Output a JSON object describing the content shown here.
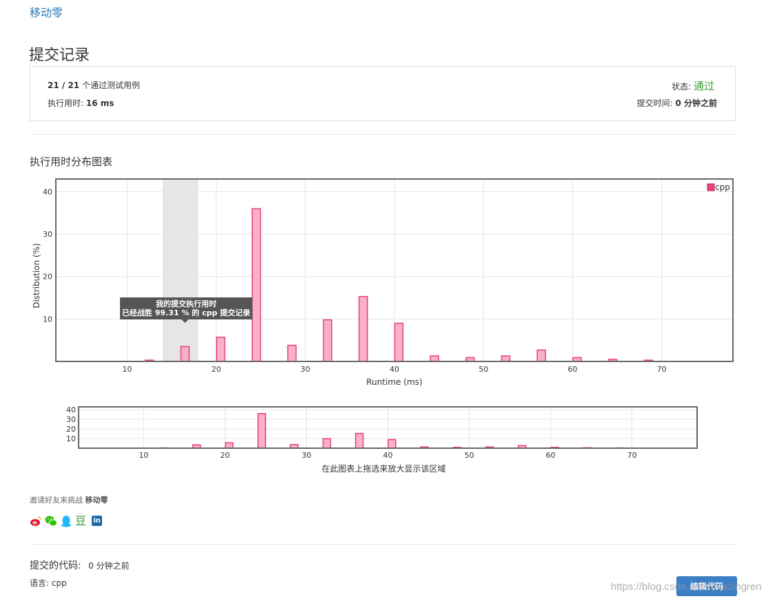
{
  "problem": {
    "link": "移动零"
  },
  "page": {
    "title": "提交记录"
  },
  "summary": {
    "passed": "21 / 21",
    "passed_suffix": " 个通过测试用例",
    "runtime_label": "执行用时: ",
    "runtime_value": "16 ms",
    "status_label": "状态: ",
    "status_value": "通过",
    "submit_time_label": "提交时间: ",
    "submit_time_value": "0 分钟之前"
  },
  "section": {
    "distribution_title": "执行用时分布图表"
  },
  "colors": {
    "bar_fill": "#f9b0c8",
    "bar_stroke": "#e8407a",
    "status_ok": "#3aa33a",
    "link": "#2a7ab8",
    "button": "#3b7fc4"
  },
  "chart_data": [
    {
      "type": "bar",
      "x": [
        12.5,
        16.5,
        20.5,
        24.5,
        28.5,
        32.5,
        36.5,
        40.5,
        44.5,
        48.5,
        52.5,
        56.5,
        60.5,
        64.5,
        68.5
      ],
      "series": [
        {
          "name": "cpp",
          "values": [
            0.3,
            3.5,
            5.7,
            36,
            3.8,
            9.8,
            15.3,
            9.0,
            1.3,
            0.9,
            1.3,
            2.7,
            0.9,
            0.5,
            0.3
          ]
        }
      ],
      "xlabel": "Runtime (ms)",
      "ylabel": "Distribution (%)",
      "xlim": [
        2,
        78
      ],
      "ylim": [
        0,
        43
      ],
      "xticks": [
        10,
        20,
        30,
        40,
        50,
        60,
        70
      ],
      "yticks": [
        10,
        20,
        30,
        40
      ],
      "grid": true,
      "legend": "top-right",
      "highlight_range": [
        14,
        18
      ],
      "tooltip": {
        "line1": "我的提交执行用时",
        "line2": "已经战胜 99.31 % 的 cpp 提交记录"
      }
    },
    {
      "type": "bar",
      "x": [
        12.5,
        16.5,
        20.5,
        24.5,
        28.5,
        32.5,
        36.5,
        40.5,
        44.5,
        48.5,
        52.5,
        56.5,
        60.5,
        64.5,
        68.5
      ],
      "series": [
        {
          "values": [
            0.3,
            3.5,
            5.7,
            36,
            3.8,
            9.8,
            15.3,
            9.0,
            1.3,
            0.9,
            1.3,
            2.7,
            0.9,
            0.5,
            0.3
          ]
        }
      ],
      "xlim": [
        2,
        78
      ],
      "ylim": [
        0,
        43
      ],
      "xticks": [
        10,
        20,
        30,
        40,
        50,
        60,
        70
      ],
      "yticks": [
        10,
        20,
        30,
        40
      ],
      "grid": true,
      "caption": "在此图表上拖选来放大显示该区域"
    }
  ],
  "share": {
    "label": "邀请好友来挑战 ",
    "problem_name": "移动零",
    "icons": [
      "weibo-icon",
      "wechat-icon",
      "qq-icon",
      "douban-icon",
      "linkedin-icon"
    ],
    "douban_glyph": "豆",
    "linkedin_glyph": "in"
  },
  "code": {
    "title": "提交的代码: ",
    "time": "0 分钟之前",
    "lang_label": "语言: ",
    "lang_value": "cpp",
    "edit_button": "编辑代码"
  },
  "watermark": "https://blog.csdn.net/Amazingren"
}
